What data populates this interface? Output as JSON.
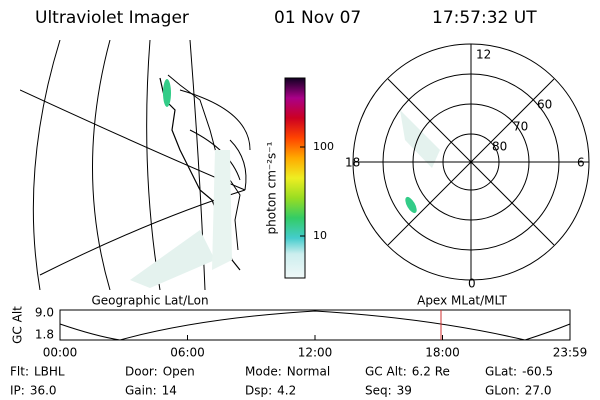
{
  "header": {
    "title": "Ultraviolet Imager",
    "date": "01 Nov 07",
    "time": "17:57:32 UT"
  },
  "colorbar": {
    "label": "photon cm⁻²s⁻¹",
    "ticks": [
      "100",
      "10"
    ]
  },
  "polar": {
    "mlt_labels": [
      "12",
      "18",
      "6",
      "0"
    ],
    "lat_labels": [
      "60",
      "70",
      "80"
    ]
  },
  "timeline": {
    "left_label": "Geographic Lat/Lon",
    "right_label": "Apex MLat/MLT",
    "y_label": "GC Alt",
    "yticks": [
      "9.0",
      "1.8"
    ],
    "xticks": [
      "00:00",
      "06:00",
      "12:00",
      "18:00",
      "23:59"
    ]
  },
  "footer": {
    "rows": [
      [
        {
          "label": "Flt:",
          "value": "LBHL"
        },
        {
          "label": "Door:",
          "value": "Open"
        },
        {
          "label": "Mode:",
          "value": "Normal"
        },
        {
          "label": "GC Alt:",
          "value": "6.2 Re"
        },
        {
          "label": "GLat:",
          "value": "-60.5"
        }
      ],
      [
        {
          "label": "IP:",
          "value": "36.0"
        },
        {
          "label": "Gain:",
          "value": "14"
        },
        {
          "label": "Dsp:",
          "value": "4.2"
        },
        {
          "label": "Seq:",
          "value": "39"
        },
        {
          "label": "GLon:",
          "value": "27.0"
        }
      ]
    ]
  }
}
